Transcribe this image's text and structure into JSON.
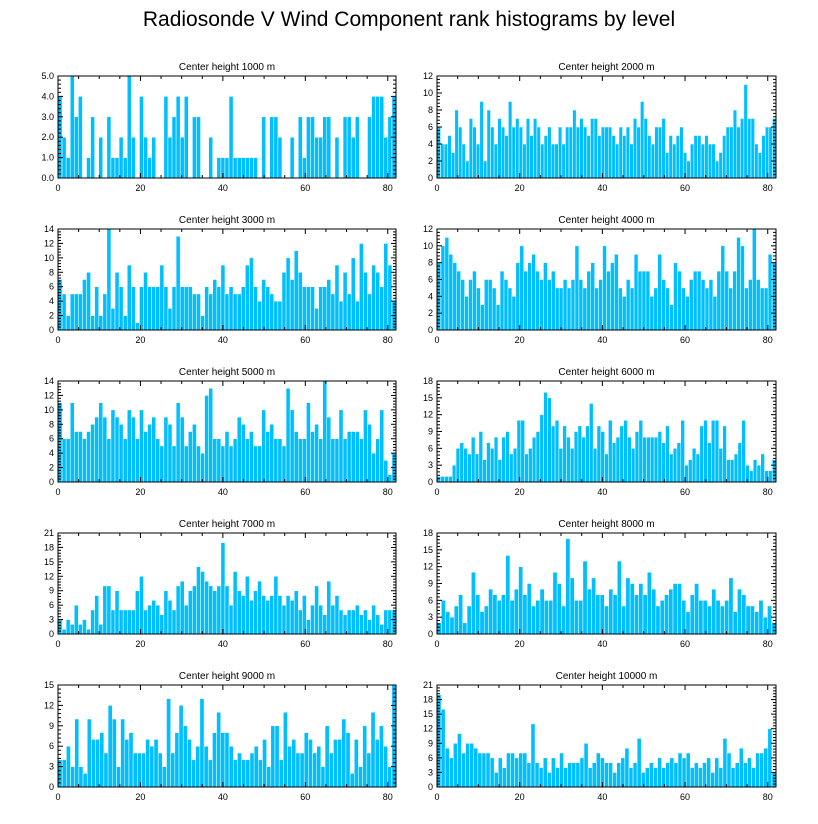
{
  "title": "Radiosonde V Wind Component rank histograms by level",
  "colors": {
    "bar": "#00BFFF",
    "axis": "#000000",
    "background": "#FFFFFF"
  },
  "chart_data": [
    {
      "type": "bar",
      "title": "Center height 1000 m",
      "xlim": [
        0,
        82
      ],
      "ylim": [
        0,
        5
      ],
      "xticks": [
        0,
        20,
        40,
        60,
        80
      ],
      "yticks": [
        0,
        1,
        2,
        3,
        4,
        5
      ],
      "ytick_labels": [
        "0.0",
        "1.0",
        "2.0",
        "3.0",
        "4.0",
        "5.0"
      ],
      "values": [
        4,
        2,
        1,
        5,
        3,
        4,
        0,
        1,
        3,
        0,
        2,
        0,
        3,
        1,
        1,
        2,
        1,
        5,
        2,
        0,
        4,
        2,
        1,
        2,
        0,
        0,
        4,
        2,
        3,
        4,
        2,
        4,
        0,
        3,
        3,
        0,
        0,
        2,
        0,
        1,
        1,
        1,
        4,
        1,
        1,
        1,
        1,
        1,
        1,
        0,
        3,
        0,
        3,
        3,
        2,
        0,
        0,
        2,
        0,
        3,
        1,
        3,
        3,
        2,
        2,
        3,
        3,
        0,
        2,
        0,
        3,
        3,
        2,
        3,
        0,
        0,
        3,
        4,
        4,
        4,
        2,
        3,
        4
      ]
    },
    {
      "type": "bar",
      "title": "Center height 2000 m",
      "xlim": [
        0,
        82
      ],
      "ylim": [
        0,
        12
      ],
      "xticks": [
        0,
        20,
        40,
        60,
        80
      ],
      "yticks": [
        0,
        2,
        4,
        6,
        8,
        10,
        12
      ],
      "ytick_labels": [
        "0",
        "2",
        "4",
        "6",
        "8",
        "10",
        "12"
      ],
      "values": [
        6,
        4,
        4,
        5,
        3,
        8,
        6,
        4,
        2,
        7,
        6,
        4,
        9,
        2,
        8,
        6,
        4,
        7,
        6,
        5,
        9,
        6,
        7,
        6,
        4,
        7,
        5,
        7,
        6,
        4,
        5,
        6,
        4,
        4,
        6,
        4,
        6,
        6,
        8,
        6,
        7,
        6,
        5,
        7,
        7,
        5,
        6,
        6,
        6,
        5,
        4,
        6,
        5,
        6,
        4,
        7,
        6,
        9,
        7,
        5,
        4,
        6,
        6,
        7,
        3,
        5,
        4,
        5,
        6,
        3,
        2,
        4,
        5,
        5,
        4,
        5,
        4,
        4,
        2,
        3,
        5,
        6,
        6,
        8,
        6,
        7,
        11,
        7,
        7,
        4,
        3,
        5,
        6,
        6,
        7
      ]
    },
    {
      "type": "bar",
      "title": "Center height 3000 m",
      "xlim": [
        0,
        82
      ],
      "ylim": [
        0,
        14
      ],
      "xticks": [
        0,
        20,
        40,
        60,
        80
      ],
      "yticks": [
        0,
        2,
        4,
        6,
        8,
        10,
        12,
        14
      ],
      "ytick_labels": [
        "0",
        "2",
        "4",
        "6",
        "8",
        "10",
        "12",
        "14"
      ],
      "values": [
        7,
        5,
        2,
        5,
        5,
        5,
        7,
        8,
        2,
        6,
        2,
        5,
        14,
        3,
        8,
        6,
        2,
        9,
        6,
        1,
        6,
        8,
        6,
        6,
        6,
        9,
        6,
        3,
        6,
        13,
        6,
        6,
        6,
        5,
        5,
        2,
        6,
        5,
        7,
        6,
        9,
        5,
        6,
        5,
        5,
        6,
        9,
        10,
        6,
        4,
        7,
        6,
        5,
        4,
        4,
        8,
        10,
        7,
        11,
        8,
        6,
        6,
        6,
        3,
        6,
        6,
        7,
        5,
        9,
        4,
        8,
        5,
        10,
        4,
        12,
        8,
        5,
        9,
        8,
        6,
        12,
        9,
        4
      ]
    },
    {
      "type": "bar",
      "title": "Center height 4000 m",
      "xlim": [
        0,
        82
      ],
      "ylim": [
        0,
        12
      ],
      "xticks": [
        0,
        20,
        40,
        60,
        80
      ],
      "yticks": [
        0,
        2,
        4,
        6,
        8,
        10,
        12
      ],
      "ytick_labels": [
        "0",
        "2",
        "4",
        "6",
        "8",
        "10",
        "12"
      ],
      "values": [
        8,
        10,
        11,
        9,
        8,
        7,
        6,
        4,
        6,
        7,
        5,
        3,
        6,
        6,
        5,
        3,
        7,
        6,
        5,
        4,
        8,
        10,
        7,
        8,
        9,
        7,
        6,
        8,
        6,
        7,
        5,
        5,
        6,
        5,
        6,
        10,
        6,
        5,
        7,
        8,
        5,
        6,
        10,
        7,
        8,
        9,
        5,
        4,
        6,
        5,
        9,
        7,
        7,
        7,
        4,
        5,
        9,
        6,
        5,
        3,
        8,
        7,
        5,
        4,
        6,
        7,
        7,
        6,
        5,
        6,
        4,
        7,
        10,
        7,
        5,
        7,
        11,
        10,
        5,
        6,
        12,
        6,
        5,
        5,
        9,
        8
      ]
    },
    {
      "type": "bar",
      "title": "Center height 5000 m",
      "xlim": [
        0,
        82
      ],
      "ylim": [
        0,
        14
      ],
      "xticks": [
        0,
        20,
        40,
        60,
        80
      ],
      "yticks": [
        0,
        2,
        4,
        6,
        8,
        10,
        12,
        14
      ],
      "ytick_labels": [
        "0",
        "2",
        "4",
        "6",
        "8",
        "10",
        "12",
        "14"
      ],
      "values": [
        11,
        6,
        6,
        11,
        7,
        7,
        6,
        7,
        8,
        9,
        11,
        9,
        6,
        10,
        9,
        8,
        6,
        10,
        9,
        6,
        10,
        7,
        8,
        9,
        6,
        5,
        9,
        8,
        5,
        11,
        9,
        5,
        7,
        8,
        5,
        4,
        12,
        13,
        6,
        6,
        5,
        7,
        5,
        6,
        9,
        8,
        6,
        7,
        5,
        5,
        10,
        7,
        8,
        6,
        6,
        5,
        13,
        10,
        7,
        6,
        6,
        11,
        7,
        8,
        6,
        14,
        9,
        6,
        6,
        10,
        6,
        7,
        7,
        7,
        6,
        10,
        8,
        4,
        6,
        10,
        3,
        1,
        4
      ]
    },
    {
      "type": "bar",
      "title": "Center height 6000 m",
      "xlim": [
        0,
        82
      ],
      "ylim": [
        0,
        18
      ],
      "xticks": [
        0,
        20,
        40,
        60,
        80
      ],
      "yticks": [
        0,
        3,
        6,
        9,
        12,
        15,
        18
      ],
      "ytick_labels": [
        "0",
        "3",
        "6",
        "9",
        "12",
        "15",
        "18"
      ],
      "values": [
        1,
        1,
        1,
        1,
        3,
        6,
        7,
        6,
        5,
        8,
        5,
        9,
        4,
        7,
        6,
        8,
        4,
        8,
        9,
        5,
        6,
        11,
        11,
        5,
        6,
        8,
        9,
        12,
        16,
        15,
        10,
        11,
        6,
        10,
        8,
        6,
        9,
        10,
        8,
        10,
        14,
        6,
        10,
        9,
        5,
        11,
        7,
        8,
        10,
        11,
        8,
        6,
        9,
        11,
        8,
        8,
        8,
        8,
        9,
        7,
        10,
        5,
        6,
        7,
        11,
        3,
        4,
        6,
        5,
        10,
        11,
        7,
        11,
        11,
        6,
        10,
        4,
        4,
        5,
        7,
        11,
        3,
        2,
        4,
        3,
        5,
        2,
        2,
        4
      ]
    },
    {
      "type": "bar",
      "title": "Center height 7000 m",
      "xlim": [
        0,
        82
      ],
      "ylim": [
        0,
        21
      ],
      "xticks": [
        0,
        20,
        40,
        60,
        80
      ],
      "yticks": [
        0,
        3,
        6,
        9,
        12,
        15,
        18,
        21
      ],
      "ytick_labels": [
        "0",
        "3",
        "6",
        "9",
        "12",
        "15",
        "18",
        "21"
      ],
      "values": [
        3,
        1,
        3,
        2,
        6,
        2,
        3,
        1,
        5,
        8,
        2,
        10,
        10,
        5,
        9,
        5,
        5,
        5,
        5,
        9,
        12,
        5,
        6,
        7,
        6,
        4,
        9,
        7,
        5,
        10,
        11,
        6,
        9,
        10,
        14,
        13,
        11,
        10,
        9,
        10,
        19,
        10,
        6,
        13,
        9,
        8,
        12,
        7,
        9,
        11,
        8,
        7,
        8,
        12,
        8,
        6,
        8,
        7,
        9,
        5,
        8,
        3,
        6,
        10,
        6,
        4,
        11,
        6,
        8,
        5,
        4,
        5,
        5,
        6,
        4,
        5,
        3,
        6,
        4,
        2,
        5,
        5,
        5
      ]
    },
    {
      "type": "bar",
      "title": "Center height 8000 m",
      "xlim": [
        0,
        82
      ],
      "ylim": [
        0,
        18
      ],
      "xticks": [
        0,
        20,
        40,
        60,
        80
      ],
      "yticks": [
        0,
        3,
        6,
        9,
        12,
        15,
        18
      ],
      "ytick_labels": [
        "0",
        "3",
        "6",
        "9",
        "12",
        "15",
        "18"
      ],
      "values": [
        2,
        6,
        4,
        3,
        5,
        7,
        2,
        5,
        11,
        7,
        4,
        5,
        8,
        7,
        6,
        7,
        14,
        6,
        8,
        12,
        7,
        9,
        5,
        6,
        8,
        6,
        6,
        11,
        9,
        5,
        17,
        10,
        6,
        6,
        13,
        8,
        10,
        7,
        7,
        5,
        8,
        7,
        13,
        5,
        10,
        9,
        7,
        9,
        7,
        11,
        8,
        5,
        6,
        7,
        8,
        9,
        9,
        6,
        4,
        7,
        9,
        6,
        6,
        5,
        8,
        6,
        5,
        6,
        10,
        4,
        8,
        7,
        5,
        5,
        4,
        6,
        3,
        5,
        2
      ]
    },
    {
      "type": "bar",
      "title": "Center height 9000 m",
      "xlim": [
        0,
        82
      ],
      "ylim": [
        0,
        15
      ],
      "xticks": [
        0,
        20,
        40,
        60,
        80
      ],
      "yticks": [
        0,
        3,
        6,
        9,
        12,
        15
      ],
      "ytick_labels": [
        "0",
        "3",
        "6",
        "9",
        "12",
        "15"
      ],
      "values": [
        4,
        4,
        6,
        3,
        10,
        3,
        2,
        10,
        7,
        7,
        8,
        5,
        12,
        10,
        3,
        10,
        7,
        8,
        5,
        5,
        5,
        7,
        6,
        7,
        5,
        3,
        13,
        5,
        8,
        12,
        9,
        7,
        4,
        6,
        13,
        6,
        4,
        8,
        11,
        8,
        8,
        6,
        4,
        5,
        4,
        4,
        5,
        6,
        4,
        7,
        3,
        9,
        9,
        4,
        11,
        6,
        7,
        5,
        5,
        8,
        7,
        5,
        6,
        3,
        9,
        5,
        7,
        7,
        10,
        8,
        2,
        7,
        3,
        9,
        5,
        11,
        7,
        9,
        6,
        3,
        15
      ]
    },
    {
      "type": "bar",
      "title": "Center height 10000 m",
      "xlim": [
        0,
        82
      ],
      "ylim": [
        0,
        21
      ],
      "xticks": [
        0,
        20,
        40,
        60,
        80
      ],
      "yticks": [
        0,
        3,
        6,
        9,
        12,
        15,
        18,
        21
      ],
      "ytick_labels": [
        "0",
        "3",
        "6",
        "9",
        "12",
        "15",
        "18",
        "21"
      ],
      "values": [
        19,
        16,
        8,
        6,
        9,
        11,
        7,
        9,
        9,
        8,
        7,
        7,
        7,
        6,
        3,
        6,
        4,
        7,
        7,
        6,
        7,
        7,
        5,
        13,
        5,
        4,
        6,
        3,
        6,
        4,
        7,
        4,
        5,
        5,
        5,
        6,
        9,
        4,
        5,
        7,
        6,
        5,
        5,
        3,
        5,
        6,
        8,
        4,
        5,
        10,
        3,
        4,
        5,
        4,
        6,
        4,
        5,
        6,
        5,
        7,
        6,
        7,
        4,
        5,
        4,
        5,
        6,
        3,
        6,
        4,
        10,
        7,
        4,
        5,
        8,
        5,
        6,
        4,
        7,
        7,
        8,
        12,
        3
      ]
    }
  ]
}
